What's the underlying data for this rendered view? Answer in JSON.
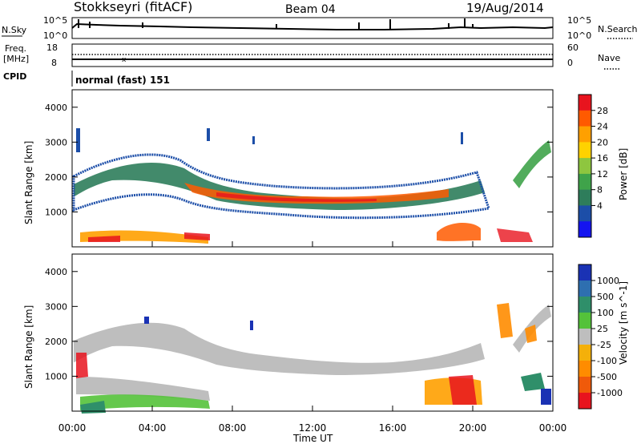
{
  "header": {
    "station": "Stokkseyri (fitACF)",
    "beam": "Beam 04",
    "date": "19/Aug/2014"
  },
  "side_labels": {
    "nsky": "N.Sky",
    "nsearch": "N.Search",
    "freq_line1": "Freq.",
    "freq_line2": "[MHz]",
    "nave": "Nave",
    "cpid": "CPID"
  },
  "noise_panel": {
    "left_ticks": [
      "10^5",
      "10^0"
    ],
    "right_ticks": [
      "10^5",
      "10^0"
    ]
  },
  "freq_panel": {
    "left_ticks": [
      "18",
      "8"
    ],
    "right_ticks": [
      "60",
      "0"
    ]
  },
  "cpid_text": "normal (fast) 151",
  "axes": {
    "ylabel": "Slant Range [km]",
    "yticks": [
      "4000",
      "3000",
      "2000",
      "1000"
    ],
    "xticks": [
      "00:00",
      "04:00",
      "08:00",
      "12:00",
      "16:00",
      "20:00",
      "00:00"
    ],
    "xlabel": "Time UT"
  },
  "power_colorbar": {
    "label": "Power [dB]",
    "ticks": [
      "28",
      "24",
      "20",
      "16",
      "12",
      "8",
      "4"
    ],
    "colors": [
      "#e8141e",
      "#ff5a00",
      "#ffa000",
      "#ffd200",
      "#8ec63f",
      "#3fa34a",
      "#2e7d5b",
      "#1c4ea8",
      "#1414f0"
    ]
  },
  "velocity_colorbar": {
    "label": "Velocity [m s^-1]",
    "ticks": [
      "1000",
      "500",
      "100",
      "25",
      "-25",
      "-100",
      "-500",
      "-1000"
    ],
    "colors": [
      "#1a32b4",
      "#2e6fb0",
      "#2f8f6a",
      "#54c23a",
      "#bebebe",
      "#f4b00a",
      "#ff8c00",
      "#f05a0a",
      "#e8141e"
    ]
  },
  "chart_data": {
    "type": "heatmap",
    "panels": [
      "Power",
      "Velocity"
    ],
    "x_range": [
      "00:00",
      "00:00"
    ],
    "ylim": [
      0,
      4500
    ],
    "scatter_bands": [
      {
        "description_free": true,
        "t_start": 0.5,
        "t_end": 5.0,
        "range_start": 1900,
        "range_end": 2500
      },
      {
        "t_start": 5.0,
        "t_end": 9.0,
        "range_start": 2500,
        "range_end": 1500
      },
      {
        "t_start": 9.0,
        "t_end": 18.5,
        "range_start": 1500,
        "range_end": 1800
      },
      {
        "t_start": 20.5,
        "t_end": 23.8,
        "range_start": 1800,
        "range_end": 3200
      }
    ]
  }
}
